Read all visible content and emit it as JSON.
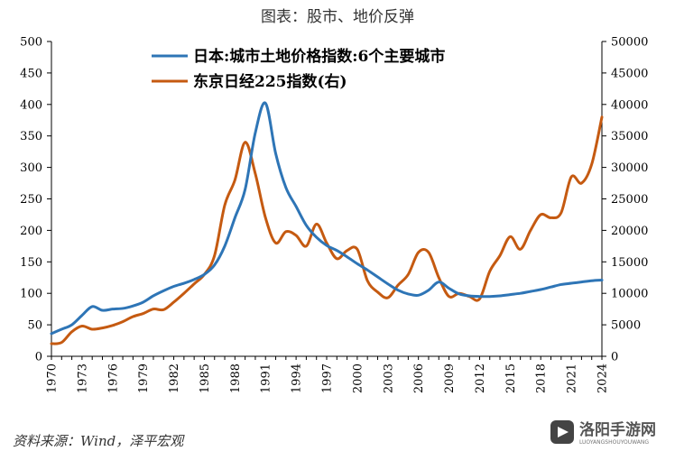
{
  "title": "图表：股市、地价反弹",
  "source": "资料来源：Wind，泽平宏观",
  "watermark": {
    "text": "洛阳手游网",
    "sub": "LUOYANGSHOUYOUWANG"
  },
  "colors": {
    "land": "#2E75B6",
    "nikkei": "#C55A11"
  },
  "chart_data": {
    "type": "line",
    "title": "图表：股市、地价反弹",
    "x_ticks": [
      "1970",
      "1973",
      "1976",
      "1979",
      "1982",
      "1985",
      "1988",
      "1991",
      "1994",
      "1997",
      "2000",
      "2003",
      "2006",
      "2009",
      "2012",
      "2015",
      "2018",
      "2021",
      "2024"
    ],
    "y_left": {
      "range": [
        0,
        500
      ],
      "ticks": [
        0,
        50,
        100,
        150,
        200,
        250,
        300,
        350,
        400,
        450,
        500
      ]
    },
    "y_right": {
      "range": [
        0,
        50000
      ],
      "ticks": [
        0,
        5000,
        10000,
        15000,
        20000,
        25000,
        30000,
        35000,
        40000,
        45000,
        50000
      ]
    },
    "grid": false,
    "legend_position": "top-center",
    "series": [
      {
        "name": "日本:城市土地价格指数:6个主要城市",
        "axis": "left",
        "color": "#2E75B6",
        "x": [
          1970,
          1971,
          1972,
          1973,
          1974,
          1975,
          1976,
          1977,
          1978,
          1979,
          1980,
          1981,
          1982,
          1983,
          1984,
          1985,
          1986,
          1987,
          1988,
          1989,
          1990,
          1991,
          1992,
          1993,
          1994,
          1995,
          1996,
          1997,
          1998,
          1999,
          2000,
          2001,
          2002,
          2003,
          2004,
          2005,
          2006,
          2007,
          2008,
          2009,
          2010,
          2011,
          2012,
          2013,
          2014,
          2015,
          2016,
          2017,
          2018,
          2019,
          2020,
          2021,
          2022,
          2023,
          2024
        ],
        "values": [
          36,
          43,
          50,
          65,
          79,
          73,
          75,
          76,
          80,
          86,
          96,
          104,
          111,
          116,
          122,
          130,
          145,
          175,
          220,
          265,
          355,
          402,
          322,
          268,
          238,
          208,
          189,
          176,
          168,
          158,
          147,
          137,
          126,
          115,
          105,
          99,
          97,
          105,
          118,
          108,
          99,
          96,
          95,
          95,
          96,
          98,
          100,
          103,
          106,
          110,
          114,
          116,
          118,
          120,
          121
        ]
      },
      {
        "name": "东京日经225指数(右)",
        "axis": "right",
        "color": "#C55A11",
        "x": [
          1970,
          1971,
          1972,
          1973,
          1974,
          1975,
          1976,
          1977,
          1978,
          1979,
          1980,
          1981,
          1982,
          1983,
          1984,
          1985,
          1986,
          1987,
          1988,
          1989,
          1990,
          1991,
          1992,
          1993,
          1994,
          1995,
          1996,
          1997,
          1998,
          1999,
          2000,
          2001,
          2002,
          2003,
          2004,
          2005,
          2006,
          2007,
          2008,
          2009,
          2010,
          2011,
          2012,
          2013,
          2014,
          2015,
          2016,
          2017,
          2018,
          2019,
          2020,
          2021,
          2022,
          2023,
          2024
        ],
        "values": [
          2000,
          2200,
          3900,
          4800,
          4300,
          4500,
          4900,
          5500,
          6300,
          6800,
          7500,
          7400,
          8600,
          10000,
          11500,
          13000,
          16000,
          24000,
          28000,
          34000,
          29000,
          22000,
          18000,
          19800,
          19200,
          17500,
          21000,
          18000,
          15500,
          16800,
          17000,
          12000,
          10200,
          9300,
          11300,
          13000,
          16500,
          16500,
          12500,
          9500,
          10000,
          9500,
          9100,
          13500,
          16000,
          19000,
          17000,
          20000,
          22500,
          22000,
          22800,
          28500,
          27500,
          30500,
          38000
        ]
      }
    ]
  }
}
